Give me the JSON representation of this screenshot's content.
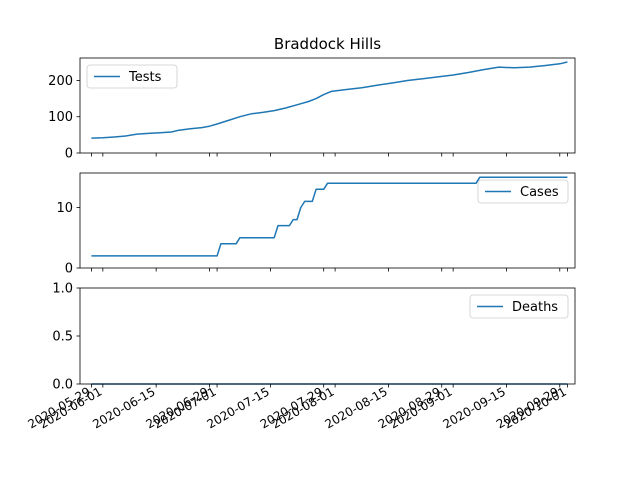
{
  "chart_data": {
    "title": "Braddock Hills",
    "type": "line",
    "line_color": "#1f77b4",
    "x_ticks": [
      "2020-05-29",
      "2020-06-01",
      "2020-06-15",
      "2020-06-29",
      "2020-07-01",
      "2020-07-15",
      "2020-07-29",
      "2020-08-01",
      "2020-08-15",
      "2020-08-29",
      "2020-09-01",
      "2020-09-15",
      "2020-09-29",
      "2020-10-01"
    ],
    "x_range": [
      "2020-05-26",
      "2020-10-03"
    ],
    "panels": [
      {
        "legend": "Tests",
        "legend_position": "upper left",
        "ylim": [
          0,
          262
        ],
        "yticks": [
          0,
          100,
          200
        ],
        "points": [
          [
            "2020-05-29",
            41
          ],
          [
            "2020-06-01",
            42
          ],
          [
            "2020-06-04",
            44
          ],
          [
            "2020-06-07",
            47
          ],
          [
            "2020-06-10",
            52
          ],
          [
            "2020-06-13",
            54
          ],
          [
            "2020-06-16",
            56
          ],
          [
            "2020-06-19",
            58
          ],
          [
            "2020-06-21",
            63
          ],
          [
            "2020-06-24",
            67
          ],
          [
            "2020-06-27",
            70
          ],
          [
            "2020-06-29",
            74
          ],
          [
            "2020-07-01",
            80
          ],
          [
            "2020-07-04",
            90
          ],
          [
            "2020-07-07",
            100
          ],
          [
            "2020-07-10",
            108
          ],
          [
            "2020-07-13",
            112
          ],
          [
            "2020-07-16",
            117
          ],
          [
            "2020-07-19",
            124
          ],
          [
            "2020-07-22",
            133
          ],
          [
            "2020-07-25",
            142
          ],
          [
            "2020-07-27",
            150
          ],
          [
            "2020-07-29",
            161
          ],
          [
            "2020-07-31",
            170
          ],
          [
            "2020-08-04",
            175
          ],
          [
            "2020-08-08",
            180
          ],
          [
            "2020-08-12",
            187
          ],
          [
            "2020-08-16",
            193
          ],
          [
            "2020-08-20",
            200
          ],
          [
            "2020-08-24",
            205
          ],
          [
            "2020-08-28",
            210
          ],
          [
            "2020-09-01",
            215
          ],
          [
            "2020-09-05",
            222
          ],
          [
            "2020-09-09",
            230
          ],
          [
            "2020-09-13",
            237
          ],
          [
            "2020-09-17",
            235
          ],
          [
            "2020-09-21",
            237
          ],
          [
            "2020-09-25",
            241
          ],
          [
            "2020-09-29",
            246
          ],
          [
            "2020-10-01",
            251
          ]
        ]
      },
      {
        "legend": "Cases",
        "legend_position": "upper right",
        "ylim": [
          0,
          15.7
        ],
        "yticks": [
          0,
          10
        ],
        "points": [
          [
            "2020-05-29",
            2
          ],
          [
            "2020-07-01",
            2
          ],
          [
            "2020-07-02",
            4
          ],
          [
            "2020-07-06",
            4
          ],
          [
            "2020-07-07",
            5
          ],
          [
            "2020-07-16",
            5
          ],
          [
            "2020-07-17",
            7
          ],
          [
            "2020-07-20",
            7
          ],
          [
            "2020-07-21",
            8
          ],
          [
            "2020-07-22",
            8
          ],
          [
            "2020-07-23",
            10
          ],
          [
            "2020-07-24",
            11
          ],
          [
            "2020-07-26",
            11
          ],
          [
            "2020-07-27",
            13
          ],
          [
            "2020-07-29",
            13
          ],
          [
            "2020-07-30",
            14
          ],
          [
            "2020-09-07",
            14
          ],
          [
            "2020-09-08",
            15
          ],
          [
            "2020-10-01",
            15
          ]
        ]
      },
      {
        "legend": "Deaths",
        "legend_position": "upper right",
        "ylim": [
          0,
          1
        ],
        "yticks": [
          0,
          0.5,
          1
        ],
        "ytick_labels": [
          "0.0",
          "0.5",
          "1.0"
        ],
        "points": [
          [
            "2020-05-29",
            0
          ],
          [
            "2020-10-01",
            0
          ]
        ]
      }
    ]
  }
}
